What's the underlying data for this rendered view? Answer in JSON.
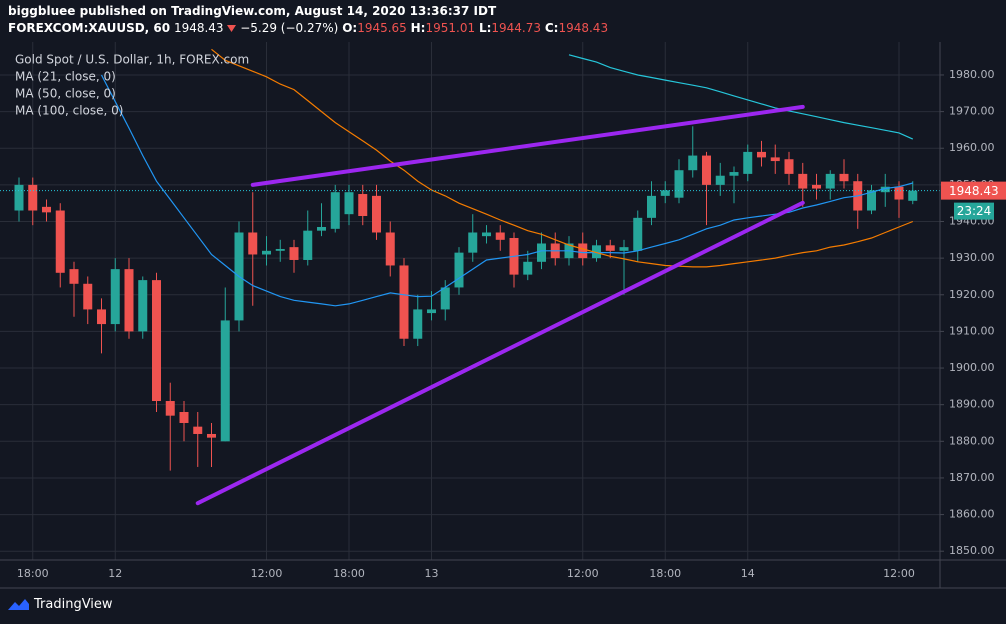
{
  "chart_data": {
    "type": "candlestick",
    "publisher_line": "biggbluee published on TradingView.com, August 14, 2020 13:36:37 IDT",
    "symbol": "FOREXCOM:XAUUSD, 60",
    "change": "−5.29 (−0.27%)",
    "ohlc_labels": [
      "O:",
      "H:",
      "L:",
      "C:"
    ],
    "title": "Gold Spot / U.S. Dollar, 1h, FOREX.com",
    "countdown": "23:24",
    "footer": "TradingView",
    "up_color": "#26a69a",
    "down_color": "#ef5350",
    "categories": [
      null,
      "18:00",
      null,
      null,
      null,
      null,
      null,
      "12",
      null,
      null,
      null,
      null,
      null,
      null,
      null,
      null,
      null,
      null,
      "12:00",
      null,
      null,
      null,
      null,
      null,
      "18:00",
      null,
      null,
      null,
      null,
      null,
      "13",
      null,
      null,
      null,
      null,
      null,
      null,
      null,
      null,
      null,
      null,
      "12:00",
      null,
      null,
      null,
      null,
      null,
      "18:00",
      null,
      null,
      null,
      null,
      null,
      "14",
      null,
      null,
      null,
      null,
      null,
      null,
      null,
      null,
      null,
      null,
      "12:00",
      null
    ],
    "open": [
      1943,
      1950,
      1944,
      1943,
      1927,
      1923,
      1916,
      1912,
      1927,
      1910,
      1924,
      1891,
      1888,
      1884,
      1882,
      1880,
      1913,
      1937,
      1931,
      1932,
      1933,
      1929.5,
      1937.5,
      1938,
      1942,
      1947.5,
      1947,
      1937,
      1928,
      1908,
      1915,
      1916,
      1922,
      1931.5,
      1936,
      1937,
      1935.5,
      1925.5,
      1929,
      1934,
      1930,
      1934,
      1930,
      1933.5,
      1932,
      1932,
      1941,
      1947,
      1946.5,
      1954,
      1958,
      1950,
      1952.5,
      1953,
      1959,
      1957.5,
      1957,
      1953,
      1950,
      1949,
      1953,
      1951,
      1943,
      1948,
      1949.5,
      1945.65
    ],
    "high": [
      1952,
      1952,
      1946,
      1945,
      1929,
      1925,
      1919,
      1930,
      1930,
      1925,
      1926,
      1896,
      1891,
      1888,
      1885,
      1922,
      1940,
      1948,
      1936,
      1935,
      1935,
      1943,
      1945,
      1950,
      1950,
      1950,
      1950,
      1940,
      1930,
      1920,
      1921,
      1924,
      1933,
      1942,
      1939,
      1939,
      1937,
      1932,
      1937,
      1937,
      1936,
      1937,
      1935,
      1935,
      1935,
      1943,
      1951,
      1951,
      1957,
      1966,
      1959,
      1956,
      1955,
      1961,
      1962,
      1961,
      1959,
      1956,
      1953,
      1954,
      1957,
      1953,
      1950,
      1953,
      1951,
      1951.01
    ],
    "low": [
      1940,
      1939,
      1940,
      1922,
      1914,
      1912,
      1904,
      1910,
      1908,
      1908,
      1888,
      1872,
      1880,
      1873,
      1873,
      1880,
      1910,
      1917,
      1928,
      1929,
      1926,
      1928,
      1936,
      1937,
      1939,
      1939,
      1935,
      1925,
      1906,
      1906,
      1913,
      1913,
      1920,
      1929,
      1934,
      1932,
      1922,
      1924,
      1927,
      1928,
      1928,
      1928,
      1929,
      1930,
      1920,
      1929,
      1939,
      1945,
      1945,
      1952,
      1939,
      1947,
      1945,
      1951,
      1955,
      1953,
      1950,
      1944,
      1946,
      1946,
      1949,
      1938,
      1942,
      1944,
      1941,
      1944.73
    ],
    "close": [
      1950,
      1943,
      1942.5,
      1926,
      1923,
      1916,
      1912,
      1927,
      1910,
      1924,
      1891,
      1887,
      1885,
      1882,
      1881,
      1913,
      1937,
      1931,
      1932,
      1932.5,
      1929.5,
      1937.5,
      1938.5,
      1948,
      1948,
      1941.5,
      1937,
      1928,
      1908,
      1916,
      1916,
      1922,
      1931.5,
      1937,
      1937,
      1935,
      1925.5,
      1929,
      1934,
      1930,
      1934,
      1930,
      1933.5,
      1932,
      1933,
      1941,
      1947,
      1948.5,
      1954,
      1958,
      1950,
      1952.5,
      1953.5,
      1959,
      1957.5,
      1956.5,
      1953,
      1949,
      1949,
      1953,
      1951,
      1943,
      1948.5,
      1949.5,
      1946,
      1948.43
    ],
    "series": [
      {
        "name": "MA (21, close, 0)",
        "color": "#2196f3",
        "values": [
          null,
          null,
          null,
          null,
          null,
          null,
          1980,
          1972.7,
          1965.5,
          1958,
          1951,
          1946,
          1941,
          1936,
          1931,
          1928,
          1925,
          1922.5,
          1921,
          1919.5,
          1918.5,
          1918,
          1917.5,
          1917,
          1917.5,
          1918.5,
          1919.5,
          1920.5,
          1920,
          1919.5,
          1919.6,
          1922,
          1924.5,
          1927,
          1929.5,
          1930,
          1930.5,
          1931,
          1932,
          1932,
          1932,
          1931.5,
          1931.5,
          1931.5,
          1931.4,
          1932,
          1933,
          1934,
          1935,
          1936.5,
          1938,
          1939,
          1940.4,
          1941,
          1941.5,
          1942,
          1942.5,
          1943.7,
          1944.5,
          1945.5,
          1946.5,
          1947,
          1948,
          1949,
          1949.5,
          1950.5
        ]
      },
      {
        "name": "MA (50, close, 0)",
        "color": "#f57c00",
        "values": [
          null,
          null,
          null,
          null,
          null,
          null,
          null,
          null,
          null,
          null,
          null,
          null,
          null,
          null,
          1987,
          1984,
          1982.5,
          1981,
          1979.5,
          1977.5,
          1976,
          1973,
          1970,
          1967,
          1964.5,
          1962,
          1959.5,
          1956.5,
          1954,
          1951,
          1948.6,
          1947,
          1945,
          1943.5,
          1942,
          1940.4,
          1939,
          1937.5,
          1936.5,
          1935,
          1933.6,
          1932.5,
          1931.5,
          1930.5,
          1929.8,
          1929,
          1928.5,
          1928,
          1927.8,
          1927.6,
          1927.6,
          1928,
          1928.5,
          1929,
          1929.5,
          1930,
          1930.8,
          1931.5,
          1932,
          1933,
          1933.6,
          1934.5,
          1935.5,
          1937,
          1938.5,
          1940
        ]
      },
      {
        "name": "MA (100, close, 0)",
        "color": "#26c6da",
        "values": [
          null,
          null,
          null,
          null,
          null,
          null,
          null,
          null,
          null,
          null,
          null,
          null,
          null,
          null,
          null,
          null,
          null,
          null,
          null,
          null,
          null,
          null,
          null,
          null,
          null,
          null,
          null,
          null,
          null,
          null,
          null,
          null,
          null,
          null,
          null,
          null,
          null,
          null,
          null,
          null,
          1985.5,
          1984.5,
          1983.5,
          1982,
          1981,
          1980,
          1979.3,
          1978.6,
          1977.9,
          1977.2,
          1976.5,
          1975.4,
          1974.3,
          1973.2,
          1972.1,
          1971,
          1970.2,
          1969.4,
          1968.6,
          1967.8,
          1967,
          1966.3,
          1965.6,
          1964.9,
          1964.2,
          1962.5
        ]
      }
    ],
    "trendlines": [
      {
        "color": "#9c27f0",
        "x": [
          17,
          57
        ],
        "y": [
          1950,
          1971.3
        ]
      },
      {
        "color": "#9c27f0",
        "x": [
          13,
          57
        ],
        "y": [
          1863.1,
          1945.1
        ]
      }
    ],
    "ylim": [
      1847.6,
      1989
    ],
    "yticks": [
      {
        "value": 1850,
        "label": "1850.00"
      },
      {
        "value": 1860,
        "label": "1860.00"
      },
      {
        "value": 1870,
        "label": "1870.00"
      },
      {
        "value": 1880,
        "label": "1880.00"
      },
      {
        "value": 1890,
        "label": "1890.00"
      },
      {
        "value": 1900,
        "label": "1900.00"
      },
      {
        "value": 1910,
        "label": "1910.00"
      },
      {
        "value": 1920,
        "label": "1920.00"
      },
      {
        "value": 1930,
        "label": "1930.00"
      },
      {
        "value": 1940,
        "label": "1940.00"
      },
      {
        "value": 1950,
        "label": "1950.00"
      },
      {
        "value": 1960,
        "label": "1960.00"
      },
      {
        "value": 1970,
        "label": "1970.00"
      },
      {
        "value": 1980,
        "label": "1980.00"
      }
    ],
    "grid": true
  }
}
